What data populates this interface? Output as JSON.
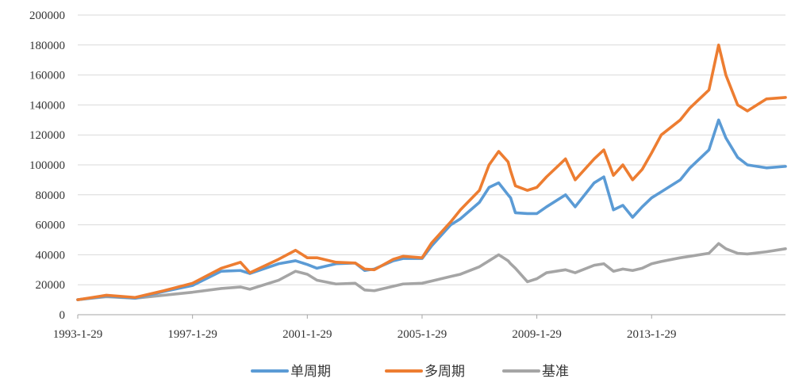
{
  "chart_data": {
    "type": "line",
    "title": "",
    "xlabel": "",
    "ylabel": "",
    "ylim": [
      0,
      200000
    ],
    "y_ticks": [
      0,
      20000,
      40000,
      60000,
      80000,
      100000,
      120000,
      140000,
      160000,
      180000,
      200000
    ],
    "y_tick_labels": [
      "0",
      "20000",
      "40000",
      "60000",
      "80000",
      "100000",
      "120000",
      "140000",
      "160000",
      "180000",
      "200000"
    ],
    "x_range": [
      "1993-01-29",
      "2017-09-29"
    ],
    "x_ticks": [
      "1993-01-29",
      "1997-01-29",
      "2001-01-29",
      "2005-01-29",
      "2009-01-29",
      "2013-01-29"
    ],
    "x_tick_labels": [
      "1993-1-29",
      "1997-1-29",
      "2001-1-29",
      "2005-1-29",
      "2009-1-29",
      "2013-1-29"
    ],
    "grid": "horizontal",
    "legend_position": "bottom",
    "series": [
      {
        "name": "单周期",
        "color": "#5B9BD5",
        "points": [
          [
            "1993-01-29",
            10000
          ],
          [
            "1994-01-29",
            12500
          ],
          [
            "1995-01-29",
            11000
          ],
          [
            "1996-01-29",
            15500
          ],
          [
            "1997-01-29",
            19500
          ],
          [
            "1998-01-29",
            29000
          ],
          [
            "1998-10-01",
            29500
          ],
          [
            "1999-01-29",
            27500
          ],
          [
            "2000-01-29",
            34000
          ],
          [
            "2000-09-01",
            36000
          ],
          [
            "2001-01-29",
            33500
          ],
          [
            "2001-06-01",
            31000
          ],
          [
            "2002-01-29",
            34000
          ],
          [
            "2002-10-01",
            34500
          ],
          [
            "2003-01-29",
            29500
          ],
          [
            "2003-06-01",
            30500
          ],
          [
            "2004-01-29",
            36000
          ],
          [
            "2004-06-01",
            37500
          ],
          [
            "2005-01-29",
            37500
          ],
          [
            "2005-06-01",
            46000
          ],
          [
            "2006-01-29",
            60000
          ],
          [
            "2006-06-01",
            64000
          ],
          [
            "2007-01-29",
            75000
          ],
          [
            "2007-06-01",
            85000
          ],
          [
            "2007-10-01",
            88000
          ],
          [
            "2008-01-29",
            80000
          ],
          [
            "2008-03-01",
            78000
          ],
          [
            "2008-05-01",
            68000
          ],
          [
            "2008-10-01",
            67500
          ],
          [
            "2009-01-29",
            67500
          ],
          [
            "2009-06-01",
            72000
          ],
          [
            "2010-01-29",
            80000
          ],
          [
            "2010-06-01",
            72000
          ],
          [
            "2011-01-29",
            88000
          ],
          [
            "2011-06-01",
            92000
          ],
          [
            "2011-10-01",
            70000
          ],
          [
            "2012-01-29",
            73000
          ],
          [
            "2012-06-01",
            65000
          ],
          [
            "2012-10-01",
            72000
          ],
          [
            "2013-01-29",
            78000
          ],
          [
            "2013-06-01",
            82000
          ],
          [
            "2014-01-29",
            90000
          ],
          [
            "2014-06-01",
            98000
          ],
          [
            "2015-01-29",
            110000
          ],
          [
            "2015-06-01",
            130000
          ],
          [
            "2015-09-01",
            118000
          ],
          [
            "2016-01-29",
            105000
          ],
          [
            "2016-06-01",
            100000
          ],
          [
            "2017-01-29",
            98000
          ],
          [
            "2017-09-29",
            99000
          ]
        ]
      },
      {
        "name": "多周期",
        "color": "#ED7D31",
        "points": [
          [
            "1993-01-29",
            10000
          ],
          [
            "1994-01-29",
            13000
          ],
          [
            "1995-01-29",
            11500
          ],
          [
            "1996-01-29",
            16000
          ],
          [
            "1997-01-29",
            21000
          ],
          [
            "1998-01-29",
            31000
          ],
          [
            "1998-10-01",
            35000
          ],
          [
            "1999-01-29",
            28000
          ],
          [
            "2000-01-29",
            37000
          ],
          [
            "2000-09-01",
            43000
          ],
          [
            "2001-01-29",
            38000
          ],
          [
            "2001-06-01",
            38000
          ],
          [
            "2002-01-29",
            35000
          ],
          [
            "2002-10-01",
            34500
          ],
          [
            "2003-01-29",
            30500
          ],
          [
            "2003-06-01",
            30000
          ],
          [
            "2004-01-29",
            37000
          ],
          [
            "2004-06-01",
            39000
          ],
          [
            "2005-01-29",
            38000
          ],
          [
            "2005-06-01",
            48000
          ],
          [
            "2006-01-29",
            62000
          ],
          [
            "2006-06-01",
            70000
          ],
          [
            "2007-01-29",
            83000
          ],
          [
            "2007-06-01",
            100000
          ],
          [
            "2007-10-01",
            109000
          ],
          [
            "2008-01-29",
            102000
          ],
          [
            "2008-03-01",
            96000
          ],
          [
            "2008-05-01",
            86000
          ],
          [
            "2008-10-01",
            83000
          ],
          [
            "2009-01-29",
            85000
          ],
          [
            "2009-06-01",
            92000
          ],
          [
            "2010-01-29",
            104000
          ],
          [
            "2010-06-01",
            90000
          ],
          [
            "2011-01-29",
            104000
          ],
          [
            "2011-06-01",
            110000
          ],
          [
            "2011-10-01",
            93000
          ],
          [
            "2012-01-29",
            100000
          ],
          [
            "2012-06-01",
            90000
          ],
          [
            "2012-10-01",
            97000
          ],
          [
            "2013-01-29",
            108000
          ],
          [
            "2013-06-01",
            120000
          ],
          [
            "2014-01-29",
            130000
          ],
          [
            "2014-06-01",
            138000
          ],
          [
            "2015-01-29",
            150000
          ],
          [
            "2015-06-01",
            180000
          ],
          [
            "2015-09-01",
            160000
          ],
          [
            "2016-01-29",
            140000
          ],
          [
            "2016-06-01",
            136000
          ],
          [
            "2017-01-29",
            144000
          ],
          [
            "2017-09-29",
            145000
          ]
        ]
      },
      {
        "name": "基准",
        "color": "#A5A5A5",
        "points": [
          [
            "1993-01-29",
            10000
          ],
          [
            "1994-01-29",
            12000
          ],
          [
            "1995-01-29",
            11000
          ],
          [
            "1996-01-29",
            13000
          ],
          [
            "1997-01-29",
            15000
          ],
          [
            "1998-01-29",
            17500
          ],
          [
            "1998-10-01",
            18500
          ],
          [
            "1999-01-29",
            17000
          ],
          [
            "2000-01-29",
            23000
          ],
          [
            "2000-09-01",
            29000
          ],
          [
            "2001-01-29",
            27000
          ],
          [
            "2001-06-01",
            23000
          ],
          [
            "2002-01-29",
            20500
          ],
          [
            "2002-10-01",
            21000
          ],
          [
            "2003-01-29",
            16500
          ],
          [
            "2003-06-01",
            16000
          ],
          [
            "2004-01-29",
            19000
          ],
          [
            "2004-06-01",
            20500
          ],
          [
            "2005-01-29",
            21000
          ],
          [
            "2005-06-01",
            22500
          ],
          [
            "2006-01-29",
            25500
          ],
          [
            "2006-06-01",
            27000
          ],
          [
            "2007-01-29",
            32000
          ],
          [
            "2007-06-01",
            36000
          ],
          [
            "2007-10-01",
            40000
          ],
          [
            "2008-01-29",
            36000
          ],
          [
            "2008-03-01",
            34000
          ],
          [
            "2008-05-01",
            31000
          ],
          [
            "2008-10-01",
            22000
          ],
          [
            "2009-01-29",
            24000
          ],
          [
            "2009-06-01",
            28000
          ],
          [
            "2010-01-29",
            30000
          ],
          [
            "2010-06-01",
            28000
          ],
          [
            "2011-01-29",
            33000
          ],
          [
            "2011-06-01",
            34000
          ],
          [
            "2011-10-01",
            29000
          ],
          [
            "2012-01-29",
            30500
          ],
          [
            "2012-06-01",
            29500
          ],
          [
            "2012-10-01",
            31000
          ],
          [
            "2013-01-29",
            34000
          ],
          [
            "2013-06-01",
            35500
          ],
          [
            "2014-01-29",
            38000
          ],
          [
            "2014-06-01",
            39000
          ],
          [
            "2015-01-29",
            41000
          ],
          [
            "2015-06-01",
            47500
          ],
          [
            "2015-09-01",
            44000
          ],
          [
            "2016-01-29",
            41000
          ],
          [
            "2016-06-01",
            40500
          ],
          [
            "2017-01-29",
            42000
          ],
          [
            "2017-09-29",
            44000
          ]
        ]
      }
    ]
  }
}
